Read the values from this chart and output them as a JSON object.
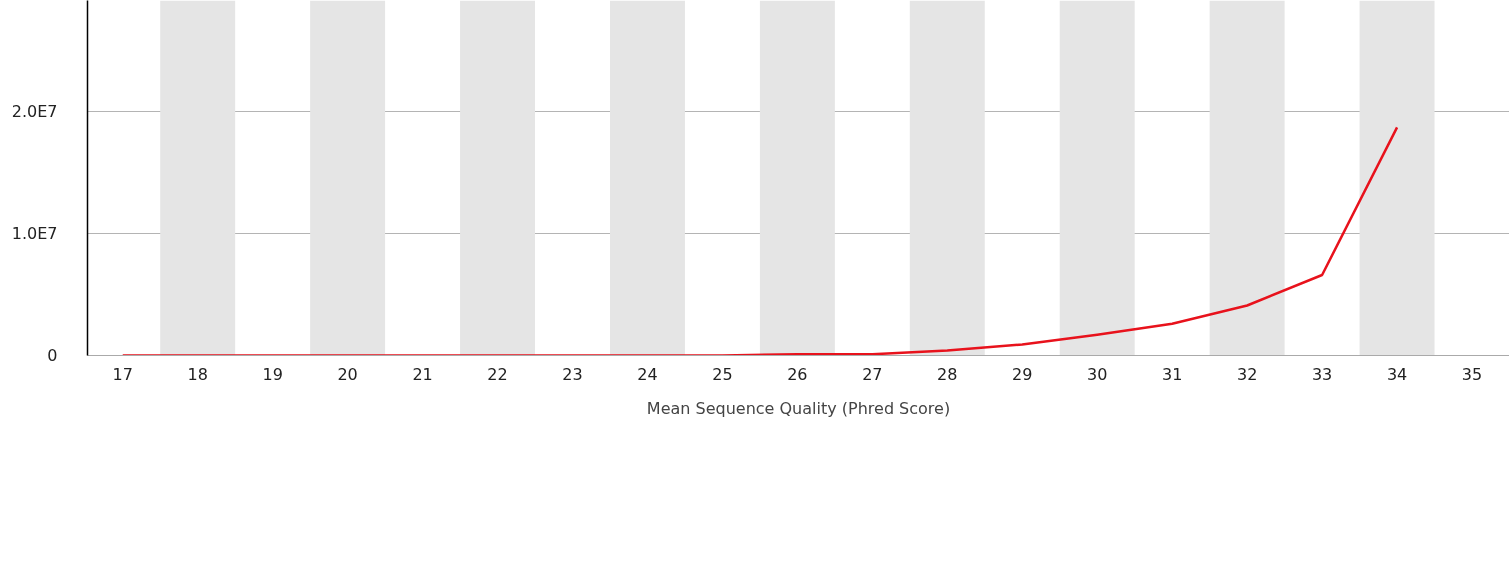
{
  "chart_data": {
    "type": "line",
    "xlabel": "Mean Sequence Quality (Phred Score)",
    "x": [
      17,
      18,
      19,
      20,
      21,
      22,
      23,
      24,
      25,
      26,
      27,
      28,
      29,
      30,
      31,
      32,
      33,
      34
    ],
    "series": [
      {
        "color": "#e8121c",
        "values": [
          0,
          0,
          0,
          0,
          0,
          0,
          0,
          0,
          0,
          100000.0,
          100000.0,
          400000.0,
          900000.0,
          1700000.0,
          2600000.0,
          4100000.0,
          6600000.0,
          18700000.0
        ]
      }
    ],
    "xlim": [
      16.53,
      35.5
    ],
    "ylim": [
      0,
      29100000.0
    ],
    "xticks": [
      17,
      18,
      19,
      20,
      21,
      22,
      23,
      24,
      25,
      26,
      27,
      28,
      29,
      30,
      31,
      32,
      33,
      34,
      35
    ],
    "yticks": [
      0,
      {
        "value": 10000000.0,
        "label": "1.0E7"
      },
      {
        "value": 20000000.0,
        "label": "2.0E7"
      }
    ],
    "grid": "y",
    "marker": "none",
    "line_style": "solid",
    "bands": [
      {
        "axis": "x",
        "from": 17.5,
        "to": 18.5,
        "color": "#e5e5e5"
      },
      {
        "axis": "x",
        "from": 19.5,
        "to": 20.5,
        "color": "#e5e5e5"
      },
      {
        "axis": "x",
        "from": 21.5,
        "to": 22.5,
        "color": "#e5e5e5"
      },
      {
        "axis": "x",
        "from": 23.5,
        "to": 24.5,
        "color": "#e5e5e5"
      },
      {
        "axis": "x",
        "from": 25.5,
        "to": 26.5,
        "color": "#e5e5e5"
      },
      {
        "axis": "x",
        "from": 27.5,
        "to": 28.5,
        "color": "#e5e5e5"
      },
      {
        "axis": "x",
        "from": 29.5,
        "to": 30.5,
        "color": "#e5e5e5"
      },
      {
        "axis": "x",
        "from": 31.5,
        "to": 32.5,
        "color": "#e5e5e5"
      },
      {
        "axis": "x",
        "from": 33.5,
        "to": 34.5,
        "color": "#e5e5e5"
      }
    ]
  }
}
